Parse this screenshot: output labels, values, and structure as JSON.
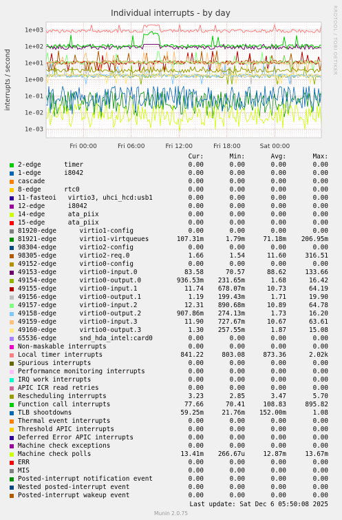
{
  "chart_data": {
    "type": "line",
    "title": "Individual interrupts - by day",
    "ylabel": "interrupts / second",
    "yscale": "log",
    "ylim": [
      0.0003,
      3000
    ],
    "yticks": [
      "1e+03",
      "1e+02",
      "1e+01",
      "1e+00",
      "1e-01",
      "1e-02",
      "1e-03"
    ],
    "xticks": [
      "Fri 00:00",
      "Fri 06:00",
      "Fri 12:00",
      "Fri 18:00",
      "Sat 00:00"
    ],
    "grid": true
  },
  "legend": {
    "headers": [
      "Cur:",
      "Min:",
      "Avg:",
      "Max:"
    ],
    "rows": [
      {
        "label": "2-edge      timer",
        "color": "#00cc00",
        "cur": "0.00",
        "min": "0.00",
        "avg": "0.00",
        "max": "0.00"
      },
      {
        "label": "1-edge      i8042",
        "color": "#0066b3",
        "cur": "0.00",
        "min": "0.00",
        "avg": "0.00",
        "max": "0.00"
      },
      {
        "label": "cascade",
        "color": "#ff8000",
        "cur": "0.00",
        "min": "0.00",
        "avg": "0.00",
        "max": "0.00"
      },
      {
        "label": "8-edge      rtc0",
        "color": "#ffcc00",
        "cur": "0.00",
        "min": "0.00",
        "avg": "0.00",
        "max": "0.00"
      },
      {
        "label": "11-fasteoi   virtio3, uhci_hcd:usb1",
        "color": "#330099",
        "cur": "0.00",
        "min": "0.00",
        "avg": "0.00",
        "max": "0.00"
      },
      {
        "label": "12-edge      i8042",
        "color": "#990099",
        "cur": "0.00",
        "min": "0.00",
        "avg": "0.00",
        "max": "0.00"
      },
      {
        "label": "14-edge      ata_piix",
        "color": "#ccff00",
        "cur": "0.00",
        "min": "0.00",
        "avg": "0.00",
        "max": "0.00"
      },
      {
        "label": "15-edge      ata_piix",
        "color": "#ff0000",
        "cur": "0.00",
        "min": "0.00",
        "avg": "0.00",
        "max": "0.00"
      },
      {
        "label": "81920-edge      virtio1-config",
        "color": "#808080",
        "cur": "0.00",
        "min": "0.00",
        "avg": "0.00",
        "max": "0.00"
      },
      {
        "label": "81921-edge      virtio1-virtqueues",
        "color": "#008f00",
        "cur": "107.31m",
        "min": "1.79m",
        "avg": "71.18m",
        "max": "206.95m"
      },
      {
        "label": "98304-edge      virtio2-config",
        "color": "#00487d",
        "cur": "0.00",
        "min": "0.00",
        "avg": "0.00",
        "max": "0.00"
      },
      {
        "label": "98305-edge      virtio2-req.0",
        "color": "#b35a00",
        "cur": "1.66",
        "min": "1.54",
        "avg": "11.60",
        "max": "316.51"
      },
      {
        "label": "49152-edge      virtio0-config",
        "color": "#b38f00",
        "cur": "0.00",
        "min": "0.00",
        "avg": "0.00",
        "max": "0.00"
      },
      {
        "label": "49153-edge      virtio0-input.0",
        "color": "#6b006b",
        "cur": "83.58",
        "min": "70.57",
        "avg": "88.62",
        "max": "133.66"
      },
      {
        "label": "49154-edge      virtio0-output.0",
        "color": "#8fb300",
        "cur": "936.53m",
        "min": "231.65m",
        "avg": "1.68",
        "max": "16.42"
      },
      {
        "label": "49155-edge      virtio0-input.1",
        "color": "#b30000",
        "cur": "11.74",
        "min": "678.07m",
        "avg": "10.73",
        "max": "64.19"
      },
      {
        "label": "49156-edge      virtio0-output.1",
        "color": "#bebebe",
        "cur": "1.19",
        "min": "199.43m",
        "avg": "1.71",
        "max": "19.90"
      },
      {
        "label": "49157-edge      virtio0-input.2",
        "color": "#80ff80",
        "cur": "12.31",
        "min": "890.68m",
        "avg": "10.89",
        "max": "64.78"
      },
      {
        "label": "49158-edge      virtio0-output.2",
        "color": "#80c9ff",
        "cur": "907.86m",
        "min": "274.13m",
        "avg": "1.73",
        "max": "16.20"
      },
      {
        "label": "49159-edge      virtio0-input.3",
        "color": "#ffc080",
        "cur": "11.90",
        "min": "727.67m",
        "avg": "10.67",
        "max": "63.61"
      },
      {
        "label": "49160-edge      virtio0-output.3",
        "color": "#ffe680",
        "cur": "1.30",
        "min": "257.55m",
        "avg": "1.87",
        "max": "15.08"
      },
      {
        "label": "65536-edge      snd_hda_intel:card0",
        "color": "#aa80ff",
        "cur": "0.00",
        "min": "0.00",
        "avg": "0.00",
        "max": "0.00"
      },
      {
        "label": "Non-maskable interrupts",
        "color": "#ee00cc",
        "cur": "0.00",
        "min": "0.00",
        "avg": "0.00",
        "max": "0.00"
      },
      {
        "label": "Local timer interrupts",
        "color": "#ff8080",
        "cur": "841.22",
        "min": "803.08",
        "avg": "873.36",
        "max": "2.02k"
      },
      {
        "label": "Spurious interrupts",
        "color": "#666600",
        "cur": "0.00",
        "min": "0.00",
        "avg": "0.00",
        "max": "0.00"
      },
      {
        "label": "Performance monitoring interrupts",
        "color": "#ffbfff",
        "cur": "0.00",
        "min": "0.00",
        "avg": "0.00",
        "max": "0.00"
      },
      {
        "label": "IRQ work interrupts",
        "color": "#00ffcc",
        "cur": "0.00",
        "min": "0.00",
        "avg": "0.00",
        "max": "0.00"
      },
      {
        "label": "APIC ICR read retries",
        "color": "#cc6699",
        "cur": "0.00",
        "min": "0.00",
        "avg": "0.00",
        "max": "0.00"
      },
      {
        "label": "Rescheduling interrupts",
        "color": "#999900",
        "cur": "3.23",
        "min": "2.85",
        "avg": "3.47",
        "max": "5.70"
      },
      {
        "label": "Function call interrupts",
        "color": "#00cc00",
        "cur": "77.66",
        "min": "70.41",
        "avg": "108.83",
        "max": "895.82"
      },
      {
        "label": "TLB shootdowns",
        "color": "#0066b3",
        "cur": "59.25m",
        "min": "21.76m",
        "avg": "152.00m",
        "max": "1.08"
      },
      {
        "label": "Thermal event interrupts",
        "color": "#ff8000",
        "cur": "0.00",
        "min": "0.00",
        "avg": "0.00",
        "max": "0.00"
      },
      {
        "label": "Threshold APIC interrupts",
        "color": "#ffcc00",
        "cur": "0.00",
        "min": "0.00",
        "avg": "0.00",
        "max": "0.00"
      },
      {
        "label": "Deferred Error APIC interrupts",
        "color": "#330099",
        "cur": "0.00",
        "min": "0.00",
        "avg": "0.00",
        "max": "0.00"
      },
      {
        "label": "Machine check exceptions",
        "color": "#990099",
        "cur": "0.00",
        "min": "0.00",
        "avg": "0.00",
        "max": "0.00"
      },
      {
        "label": "Machine check polls",
        "color": "#ccff00",
        "cur": "13.41m",
        "min": "266.67u",
        "avg": "12.87m",
        "max": "13.67m"
      },
      {
        "label": "ERR",
        "color": "#ff0000",
        "cur": "0.00",
        "min": "0.00",
        "avg": "0.00",
        "max": "0.00"
      },
      {
        "label": "MIS",
        "color": "#808080",
        "cur": "0.00",
        "min": "0.00",
        "avg": "0.00",
        "max": "0.00"
      },
      {
        "label": "Posted-interrupt notification event",
        "color": "#008f00",
        "cur": "0.00",
        "min": "0.00",
        "avg": "0.00",
        "max": "0.00"
      },
      {
        "label": "Nested posted-interrupt event",
        "color": "#00487d",
        "cur": "0.00",
        "min": "0.00",
        "avg": "0.00",
        "max": "0.00"
      },
      {
        "label": "Posted-interrupt wakeup event",
        "color": "#b35a00",
        "cur": "0.00",
        "min": "0.00",
        "avg": "0.00",
        "max": "0.00"
      }
    ]
  },
  "footer": {
    "last_update": "Last update: Sat Dec  6 05:50:08 2025",
    "munin_version": "Munin 2.0.75",
    "watermark": "RRDTOOL / TOBI OETIKER"
  }
}
